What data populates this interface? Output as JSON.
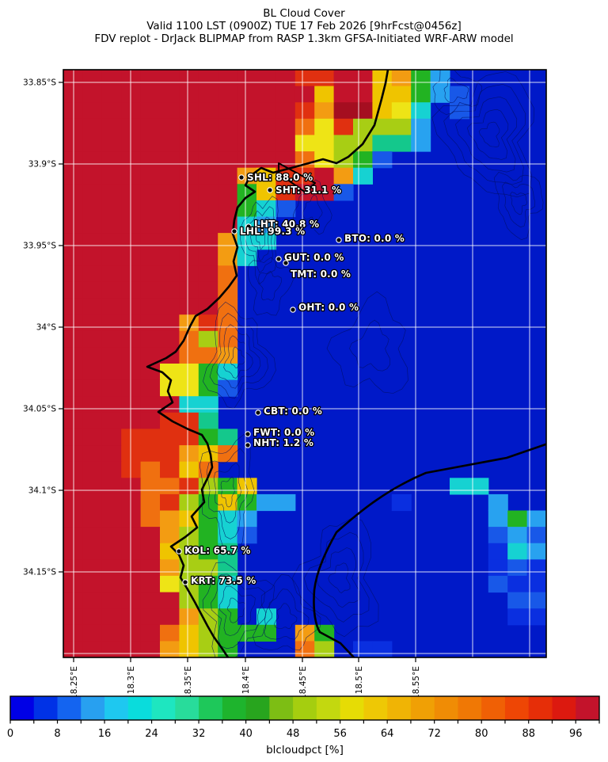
{
  "title": {
    "line1": "BL Cloud Cover",
    "line2": "Valid 1100 LST (0900Z) TUE 17 Feb 2026 [9hrFcst@0456z]",
    "line3": "FDV replot - DrJack BLIPMAP from RASP 1.3km GFSA-Initiated WRF-ARW model"
  },
  "map": {
    "y_ticks": [
      {
        "label": "33.85°S",
        "pos": 104
      },
      {
        "label": "33.9°S",
        "pos": 207
      },
      {
        "label": "33.95°S",
        "pos": 310
      },
      {
        "label": "34°S",
        "pos": 413
      },
      {
        "label": "34.05°S",
        "pos": 516
      },
      {
        "label": "34.1°S",
        "pos": 619
      },
      {
        "label": "34.15°S",
        "pos": 722
      }
    ],
    "x_ticks": [
      {
        "label": "18.25°E",
        "pos": 93
      },
      {
        "label": "18.3°E",
        "pos": 165
      },
      {
        "label": "18.35°E",
        "pos": 237
      },
      {
        "label": "18.4°E",
        "pos": 310
      },
      {
        "label": "18.45°E",
        "pos": 382
      },
      {
        "label": "18.5°E",
        "pos": 453
      },
      {
        "label": "18.55°E",
        "pos": 525
      }
    ],
    "extra_gridlines_x": [
      597,
      669
    ],
    "extra_gridlines_y": [
      825
    ],
    "grid": {
      "palette": {
        "R": "#c3132b",
        "r": "#e03010",
        "D": "#a50e20",
        "O": "#f07010",
        "o": "#f39c12",
        "y": "#efc400",
        "Y": "#eee416",
        "L": "#a8ce14",
        "G": "#22b322",
        "T": "#14c88c",
        "C": "#16d2d2",
        "A": "#28a2f0",
        "b": "#1858e8",
        "E": "#0a2fe0",
        "B": "#0019c8"
      },
      "rows": [
        "RRRRRRRRRRRRrrRRyoGABBBBB",
        "RRRRRRRRRRRRRyRRyyGAbBBBB",
        "RRRRRRRRRRRRroDDyYCBbBBBB",
        "RRRRRRRRRRRROYrLLLABBBBBB",
        "RRRRRRRRRRRRYYLLTTABBBBBB",
        "RRRRRRRRRRRROYLGbBBBBBBBB",
        "RRRRRRRRRoyrrRoCBBBBBBBBB",
        "RRRRRRRRRGyrRRbBBBBBBBBBB",
        "RRRRRRRRRGCbBBBBBBBBBBBBB",
        "RRRRRRRRRCABBBBBBBBBBBBBB",
        "RRRRRRRRoCCBBBBBBBBBBBBBB",
        "RRRRRRRRoCBBBBBBBBBBBBBBB",
        "RRRRRRRROBBBBBBBBBBBBBBBB",
        "RRRRRRRROBBBBBBBBBBBBBBBB",
        "RRRRRRRROBBBBBBBBBBBBBBBB",
        "RRRRRRorOBBBBBBBBBBBBBBBB",
        "RRRRRROLOBBBBBBBBBBBBBBBB",
        "RRRRRROOoBBBBBBBBBBBBBBBB",
        "RRRRRYYGCBBBBBBBBBBBBBBBB",
        "RRRRRYYGbBBBBBBBBBBBBBBBB",
        "RRRRRRCCBBBBBBBBBBBBBBBBB",
        "RRRRRrrTBBBBBBBBBBBBBBBBB",
        "RRRrrrrGTBBBBBBBBBBBBBBBB",
        "RRRrrroyOBBBBBBBBBBBBBBBB",
        "RRRrOryOBBBBBBBBBBBBBBBBB",
        "RRRROOrLGyBBBBBBBBBBCCBBB",
        "RRRROrLGyGAABBBBBEBBBBABB",
        "RRRROoyGCABBBBBBBBBBBBAGA",
        "RRRRRoLGCbBBBBBBBBBBBBbAb",
        "RRRRRyLGTBBBBBBBBBBBBBECA",
        "RRRRRoLLTBBBBBBBBBBBBBEbE",
        "RRRRRYLGCBBBBBBBBBBBBBbEE",
        "RRRRRRLGCBBBBBBBBBBBBBBbb",
        "RRRRRRoLGBCBBBBBBBBBBBBEE",
        "RRRRROyLGGGBoGBBBBBBBBBBB",
        "RRRRRoyLGBBBOLBEEBBBBBBBB"
      ]
    },
    "stations": [
      {
        "id": "SHL",
        "value": "88.0",
        "label": "SHL: 88.0 %",
        "dot": [
          305,
          224
        ],
        "text": [
          312,
          228
        ]
      },
      {
        "id": "SHT",
        "value": "31.1",
        "label": "SHT: 31.1 %",
        "dot": [
          341,
          240
        ],
        "text": [
          348,
          244
        ]
      },
      {
        "id": "LHT",
        "value": "40.8",
        "label": "LHT: 40.8 %",
        "dot": [
          314,
          286
        ],
        "text": [
          321,
          287
        ]
      },
      {
        "id": "LHL",
        "value": "99.3",
        "label": "LHL: 99.3 %",
        "dot": [
          296,
          292
        ],
        "text": [
          303,
          296
        ]
      },
      {
        "id": "BTO",
        "value": "0.0",
        "label": "BTO: 0.0 %",
        "dot": [
          428,
          303
        ],
        "text": [
          435,
          305
        ]
      },
      {
        "id": "GUT",
        "value": "0.0",
        "label": "GUT: 0.0 %",
        "dot": [
          352,
          327
        ],
        "text": [
          359,
          329
        ]
      },
      {
        "id": "TMT",
        "value": "0.0",
        "label": "TMT: 0.0 %",
        "dot": [
          361,
          332
        ],
        "text": [
          367,
          350
        ]
      },
      {
        "id": "OHT",
        "value": "0.0",
        "label": "OHT: 0.0 %",
        "dot": [
          370,
          391
        ],
        "text": [
          377,
          392
        ]
      },
      {
        "id": "CBT",
        "value": "0.0",
        "label": "CBT: 0.0 %",
        "dot": [
          326,
          521
        ],
        "text": [
          333,
          523
        ]
      },
      {
        "id": "FWT",
        "value": "0.0",
        "label": "FWT: 0.0 %",
        "dot": [
          313,
          548
        ],
        "text": [
          320,
          550
        ]
      },
      {
        "id": "NHT",
        "value": "1.2",
        "label": "NHT: 1.2 %",
        "dot": [
          313,
          562
        ],
        "text": [
          320,
          563
        ]
      },
      {
        "id": "KOL",
        "value": "65.7",
        "label": "KOL: 65.7 %",
        "dot": [
          226,
          696
        ],
        "text": [
          233,
          699
        ]
      },
      {
        "id": "KRT",
        "value": "73.5",
        "label": "KRT: 73.5 %",
        "dot": [
          234,
          735
        ],
        "text": [
          241,
          737
        ]
      }
    ]
  },
  "colorbar": {
    "label": "blcloudpct [%]",
    "tick_labels": [
      "0",
      "8",
      "16",
      "24",
      "32",
      "40",
      "48",
      "56",
      "64",
      "72",
      "80",
      "88",
      "96"
    ],
    "colors": [
      "#0000e6",
      "#0032e6",
      "#1464f0",
      "#28a0f0",
      "#1ec8f0",
      "#0adcdc",
      "#1ee6c0",
      "#28dc9b",
      "#1ec85a",
      "#1eb42d",
      "#28a51e",
      "#7dbe14",
      "#a5ce0f",
      "#c3d80f",
      "#e6dc05",
      "#eec805",
      "#f0b405",
      "#f0a005",
      "#f08c05",
      "#f07805",
      "#f06005",
      "#ee4605",
      "#e62e08",
      "#dc190f",
      "#c3132b"
    ]
  }
}
